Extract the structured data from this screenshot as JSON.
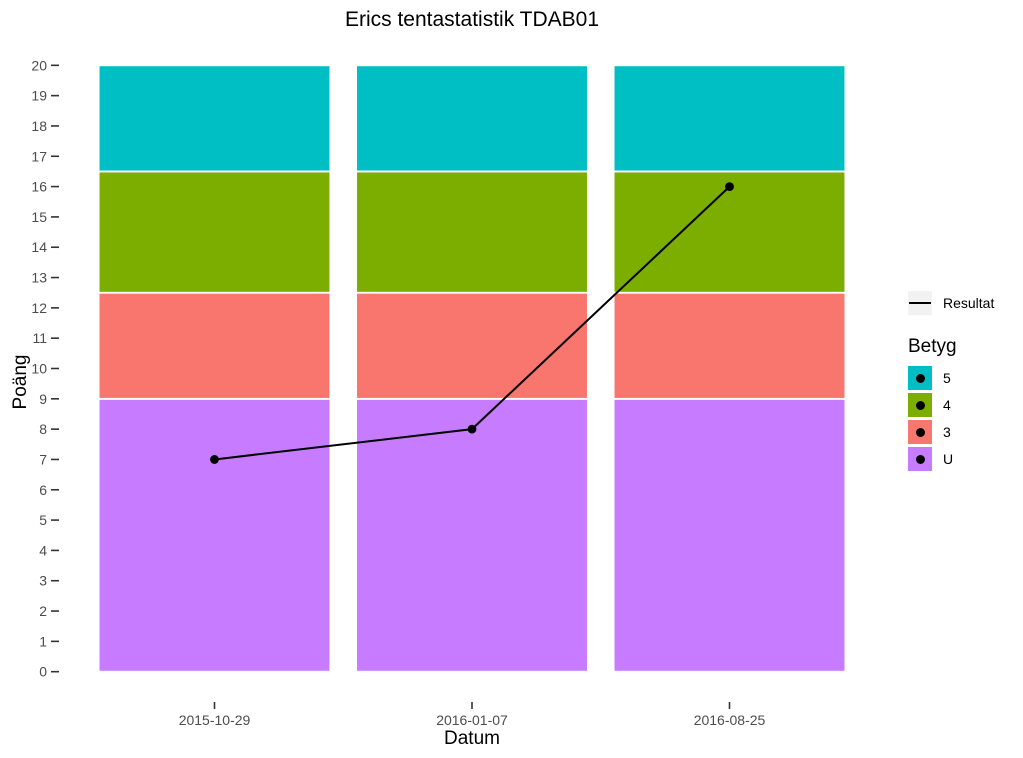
{
  "chart_data": {
    "type": "bar",
    "title": "Erics tentastatistik TDAB01",
    "xlabel": "Datum",
    "ylabel": "Poäng",
    "ylim": [
      0,
      20
    ],
    "yticks": [
      0,
      1,
      2,
      3,
      4,
      5,
      6,
      7,
      8,
      9,
      10,
      11,
      12,
      13,
      14,
      15,
      16,
      17,
      18,
      19,
      20
    ],
    "categories": [
      "2015-10-29",
      "2016-01-07",
      "2016-08-25"
    ],
    "stacked_series": [
      {
        "name": "U",
        "color": "#C77CFF",
        "values": [
          9,
          9,
          9
        ]
      },
      {
        "name": "3",
        "color": "#F8766D",
        "values": [
          3.5,
          3.5,
          3.5
        ]
      },
      {
        "name": "4",
        "color": "#7CAE00",
        "values": [
          4,
          4,
          4
        ]
      },
      {
        "name": "5",
        "color": "#00BFC4",
        "values": [
          3.5,
          3.5,
          3.5
        ]
      }
    ],
    "line_series": {
      "name": "Resultat",
      "color": "#000000",
      "values": [
        7,
        8,
        16
      ]
    },
    "grid": false,
    "legend_position": "right",
    "legend": {
      "line_label": "Resultat",
      "fill_title": "Betyg",
      "fill_items": [
        {
          "label": "5",
          "color": "#00BFC4"
        },
        {
          "label": "4",
          "color": "#7CAE00"
        },
        {
          "label": "3",
          "color": "#F8766D"
        },
        {
          "label": "U",
          "color": "#C77CFF"
        }
      ]
    },
    "colors": {
      "axis_text": "#4D4D4D",
      "tick_mark": "#333333",
      "bar_border": "#FFFFFF",
      "background": "#FFFFFF"
    }
  }
}
